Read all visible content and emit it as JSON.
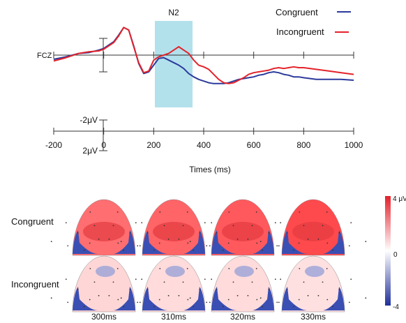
{
  "chart_data": [
    {
      "type": "line",
      "electrode_label": "FCZ",
      "annotation": "N2",
      "shaded_window_ms": [
        210,
        360
      ],
      "xlabel": "Times (ms)",
      "xlim": [
        -200,
        1000
      ],
      "x_ticks": [
        "-200",
        "0",
        "200",
        "400",
        "600",
        "800",
        "1000"
      ],
      "scale_labels": {
        "neg": "-2μV",
        "pos": "2μV"
      },
      "ylim_uV": [
        -3.5,
        4.0
      ],
      "legend_position": "top-right",
      "series": [
        {
          "name": "Congruent",
          "color": "#2b3a9c",
          "x": [
            -200,
            -150,
            -100,
            -60,
            -20,
            0,
            20,
            40,
            60,
            80,
            100,
            120,
            140,
            160,
            180,
            200,
            220,
            240,
            260,
            280,
            300,
            320,
            340,
            360,
            380,
            400,
            420,
            440,
            460,
            480,
            500,
            520,
            540,
            560,
            580,
            600,
            620,
            640,
            660,
            680,
            700,
            720,
            740,
            760,
            780,
            800,
            850,
            900,
            950,
            1000
          ],
          "y": [
            -0.5,
            -0.2,
            0.2,
            0.3,
            0.6,
            0.8,
            1.2,
            1.6,
            2.4,
            3.3,
            3.0,
            1.1,
            -1.0,
            -2.2,
            -2.0,
            -1.2,
            -0.4,
            -0.3,
            -0.6,
            -0.9,
            -1.2,
            -1.6,
            -2.2,
            -2.6,
            -2.9,
            -3.1,
            -3.3,
            -3.4,
            -3.4,
            -3.4,
            -3.3,
            -3.1,
            -2.9,
            -2.8,
            -2.7,
            -2.6,
            -2.4,
            -2.3,
            -2.1,
            -2.0,
            -2.1,
            -2.3,
            -2.4,
            -2.6,
            -2.6,
            -2.7,
            -2.9,
            -2.9,
            -2.9,
            -3.0
          ]
        },
        {
          "name": "Incongruent",
          "color": "#e3222a",
          "x": [
            -200,
            -150,
            -100,
            -60,
            -20,
            0,
            20,
            40,
            60,
            80,
            100,
            120,
            140,
            160,
            180,
            200,
            220,
            240,
            260,
            280,
            300,
            320,
            340,
            360,
            380,
            400,
            420,
            440,
            460,
            480,
            500,
            520,
            540,
            560,
            580,
            600,
            620,
            640,
            660,
            680,
            700,
            720,
            740,
            760,
            780,
            800,
            850,
            900,
            950,
            1000
          ],
          "y": [
            -0.7,
            -0.3,
            0.2,
            0.4,
            0.5,
            0.7,
            1.1,
            1.5,
            2.3,
            3.3,
            3.0,
            1.0,
            -0.9,
            -2.1,
            -1.9,
            -0.6,
            -0.2,
            0.0,
            0.2,
            0.6,
            1.0,
            0.6,
            0.2,
            -0.6,
            -1.2,
            -1.4,
            -1.7,
            -2.3,
            -2.9,
            -3.3,
            -3.4,
            -3.3,
            -3.0,
            -2.7,
            -2.3,
            -2.1,
            -2.0,
            -1.9,
            -1.8,
            -1.6,
            -1.5,
            -1.6,
            -1.5,
            -1.4,
            -1.5,
            -1.5,
            -1.7,
            -1.9,
            -2.1,
            -2.3
          ]
        }
      ]
    },
    {
      "type": "heatmap",
      "rows": [
        "Congruent",
        "Incongruent"
      ],
      "time_labels": [
        "300ms",
        "310ms",
        "320ms",
        "330ms"
      ],
      "color_scale": {
        "max_label": "4 μV",
        "mid_label": "0",
        "min_label": "-4",
        "range_uV": [
          -4,
          4
        ],
        "colors": [
          "#1f2f9a",
          "#ffffff",
          "#e3202a"
        ]
      },
      "values_uV": [
        [
          2.8,
          3.0,
          3.2,
          3.5
        ],
        [
          0.8,
          0.7,
          0.7,
          0.6
        ]
      ]
    }
  ]
}
